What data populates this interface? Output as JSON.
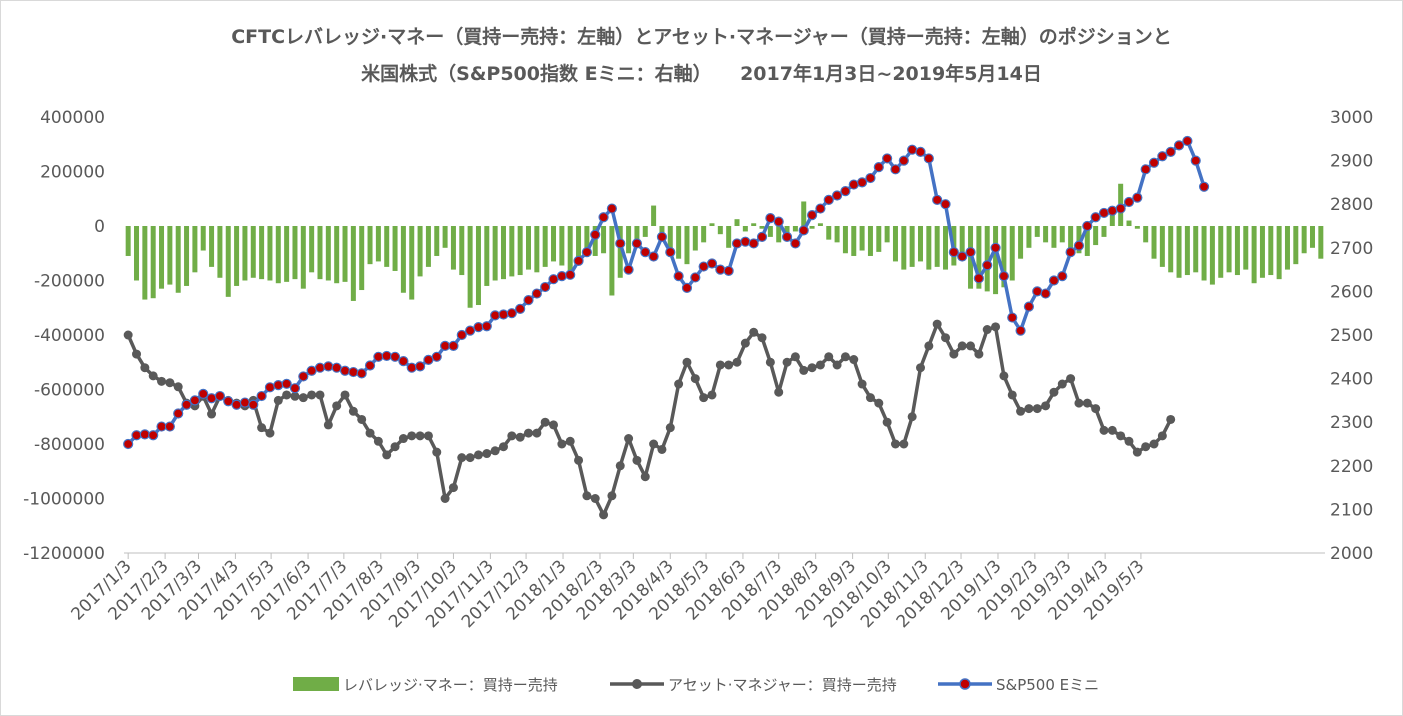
{
  "title": {
    "line1": "CFTCレバレッジ·マネー（買持ー売持：左軸）とアセット·マネージャー（買持ー売持：左軸）のポジションと",
    "line2": "米国株式（S&P500指数 Eミニ：右軸）　　2017年1月3日~2019年5月14日"
  },
  "chart_data": {
    "type": "bar",
    "title": "CFTCレバレッジ·マネー（買持ー売持：左軸）とアセット·マネージャー（買持ー売持：左軸）のポジションと 米国株式（S&P500指数 Eミニ：右軸）　　2017年1月3日~2019年5月14日",
    "x_tick_labels": [
      "2017/1/3",
      "2017/2/3",
      "2017/3/3",
      "2017/4/3",
      "2017/5/3",
      "2017/6/3",
      "2017/7/3",
      "2017/8/3",
      "2017/9/3",
      "2017/10/3",
      "2017/11/3",
      "2017/12/3",
      "2018/1/3",
      "2018/2/3",
      "2018/3/3",
      "2018/4/3",
      "2018/5/3",
      "2018/6/3",
      "2018/7/3",
      "2018/8/3",
      "2018/9/3",
      "2018/10/3",
      "2018/11/3",
      "2018/12/3",
      "2019/1/3",
      "2019/2/3",
      "2019/3/3",
      "2019/4/3",
      "2019/5/3"
    ],
    "x_tick_weeks": [
      0,
      4.43,
      8.43,
      12.86,
      17.14,
      21.57,
      25.86,
      30.29,
      34.71,
      39,
      43.43,
      47.71,
      52.14,
      56.57,
      60.57,
      65,
      69.29,
      73.71,
      78,
      82.43,
      86.86,
      91.14,
      95.57,
      99.86,
      104.29,
      108.71,
      112.71,
      117.14,
      121.43
    ],
    "left_axis": {
      "ticks": [
        400000,
        200000,
        0,
        -200000,
        -400000,
        -600000,
        -800000,
        -1000000,
        -1200000
      ],
      "labels": [
        "400000",
        "200000",
        "0",
        "-200000",
        "-400000",
        "-600000",
        "-800000",
        "-1000000",
        "-1200000"
      ],
      "range": [
        -1200000,
        400000
      ]
    },
    "right_axis": {
      "ticks": [
        3000,
        2900,
        2800,
        2700,
        2600,
        2500,
        2400,
        2300,
        2200,
        2100,
        2000
      ],
      "labels": [
        "3000",
        "2900",
        "2800",
        "2700",
        "2600",
        "2500",
        "2400",
        "2300",
        "2200",
        "2100",
        "2000"
      ],
      "range": [
        2000,
        3000
      ]
    },
    "grid": false,
    "legend_position": "bottom",
    "series": [
      {
        "name": "レバレッジ·マネー：買持ー売持",
        "type": "bar",
        "axis": "left",
        "color": "#70ad47",
        "values": [
          -110000,
          -200000,
          -270000,
          -265000,
          -230000,
          -215000,
          -245000,
          -220000,
          -170000,
          -90000,
          -150000,
          -190000,
          -260000,
          -220000,
          -200000,
          -190000,
          -195000,
          -200000,
          -210000,
          -205000,
          -195000,
          -230000,
          -170000,
          -195000,
          -200000,
          -210000,
          -205000,
          -275000,
          -235000,
          -140000,
          -130000,
          -150000,
          -165000,
          -245000,
          -270000,
          -185000,
          -150000,
          -110000,
          -80000,
          -160000,
          -180000,
          -300000,
          -290000,
          -220000,
          -200000,
          -195000,
          -185000,
          -180000,
          -160000,
          -170000,
          -150000,
          -130000,
          -145000,
          -170000,
          -145000,
          -90000,
          -110000,
          -100000,
          -255000,
          -190000,
          -100000,
          -70000,
          -40000,
          75000,
          -50000,
          -100000,
          -120000,
          -140000,
          -90000,
          -60000,
          10000,
          -30000,
          -80000,
          25000,
          -20000,
          10000,
          -10000,
          -40000,
          -60000,
          -30000,
          -20000,
          90000,
          -10000,
          10000,
          -50000,
          -60000,
          -100000,
          -110000,
          -90000,
          -110000,
          -95000,
          -60000,
          -130000,
          -160000,
          -150000,
          -130000,
          -160000,
          -150000,
          -160000,
          -145000,
          -120000,
          -230000,
          -230000,
          -240000,
          -250000,
          -225000,
          -200000,
          -120000,
          -80000,
          -40000,
          -60000,
          -80000,
          -60000,
          -90000,
          -100000,
          -110000,
          -70000,
          -40000,
          55000,
          155000,
          20000,
          -10000,
          -60000,
          -120000,
          -150000,
          -170000,
          -190000,
          -180000,
          -170000,
          -200000,
          -215000,
          -190000,
          -170000,
          -180000,
          -160000,
          -210000,
          -190000,
          -180000,
          -195000,
          -160000,
          -140000,
          -100000,
          -80000,
          -120000
        ]
      },
      {
        "name": "アセット·マネジャー：買持ー売持",
        "type": "line",
        "axis": "left",
        "color": "#595959",
        "values": [
          -400000,
          -470000,
          -520000,
          -550000,
          -570000,
          -575000,
          -590000,
          -650000,
          -660000,
          -625000,
          -690000,
          -625000,
          -640000,
          -650000,
          -660000,
          -640000,
          -740000,
          -760000,
          -640000,
          -620000,
          -625000,
          -630000,
          -620000,
          -620000,
          -730000,
          -660000,
          -620000,
          -680000,
          -710000,
          -760000,
          -790000,
          -840000,
          -810000,
          -780000,
          -770000,
          -770000,
          -770000,
          -830000,
          -1000000,
          -960000,
          -850000,
          -850000,
          -840000,
          -835000,
          -825000,
          -810000,
          -770000,
          -775000,
          -760000,
          -760000,
          -720000,
          -730000,
          -800000,
          -790000,
          -860000,
          -990000,
          -1000000,
          -1060000,
          -990000,
          -880000,
          -780000,
          -860000,
          -920000,
          -800000,
          -820000,
          -740000,
          -580000,
          -500000,
          -560000,
          -630000,
          -620000,
          -510000,
          -510000,
          -500000,
          -430000,
          -390000,
          -410000,
          -500000,
          -610000,
          -500000,
          -480000,
          -530000,
          -520000,
          -510000,
          -480000,
          -510000,
          -480000,
          -490000,
          -580000,
          -630000,
          -650000,
          -720000,
          -800000,
          -800000,
          -700000,
          -520000,
          -440000,
          -360000,
          -410000,
          -470000,
          -440000,
          -440000,
          -470000,
          -380000,
          -370000,
          -550000,
          -620000,
          -680000,
          -670000,
          -670000,
          -660000,
          -610000,
          -580000,
          -560000,
          -650000,
          -650000,
          -670000,
          -750000,
          -750000,
          -770000,
          -790000,
          -830000,
          -810000,
          -800000,
          -770000,
          -710000
        ]
      },
      {
        "name": "S&P500 Eミニ",
        "type": "line",
        "axis": "right",
        "color": "#4472c4",
        "marker_color": "#c00000",
        "values": [
          2250,
          2270,
          2272,
          2270,
          2290,
          2290,
          2320,
          2340,
          2350,
          2365,
          2355,
          2360,
          2348,
          2340,
          2345,
          2340,
          2360,
          2380,
          2385,
          2388,
          2378,
          2405,
          2418,
          2425,
          2428,
          2425,
          2418,
          2415,
          2412,
          2430,
          2450,
          2452,
          2450,
          2440,
          2425,
          2428,
          2443,
          2450,
          2475,
          2475,
          2500,
          2510,
          2518,
          2520,
          2545,
          2547,
          2550,
          2560,
          2580,
          2595,
          2610,
          2628,
          2635,
          2638,
          2670,
          2690,
          2730,
          2770,
          2790,
          2710,
          2650,
          2710,
          2690,
          2680,
          2725,
          2690,
          2635,
          2608,
          2632,
          2657,
          2664,
          2650,
          2647,
          2710,
          2714,
          2710,
          2725,
          2768,
          2760,
          2725,
          2710,
          2740,
          2775,
          2790,
          2810,
          2820,
          2830,
          2845,
          2850,
          2860,
          2885,
          2905,
          2880,
          2900,
          2925,
          2920,
          2905,
          2810,
          2800,
          2690,
          2680,
          2690,
          2630,
          2660,
          2700,
          2635,
          2540,
          2510,
          2565,
          2600,
          2595,
          2625,
          2635,
          2690,
          2705,
          2750,
          2770,
          2780,
          2785,
          2790,
          2805,
          2815,
          2880,
          2895,
          2910,
          2920,
          2935,
          2945,
          2900,
          2840
        ]
      }
    ]
  },
  "legend": {
    "leverage_label": "レバレッジ·マネー：買持ー売持",
    "asset_label": "アセット·マネジャー：買持ー売持",
    "spx_label": "S&P500 Eミニ"
  }
}
